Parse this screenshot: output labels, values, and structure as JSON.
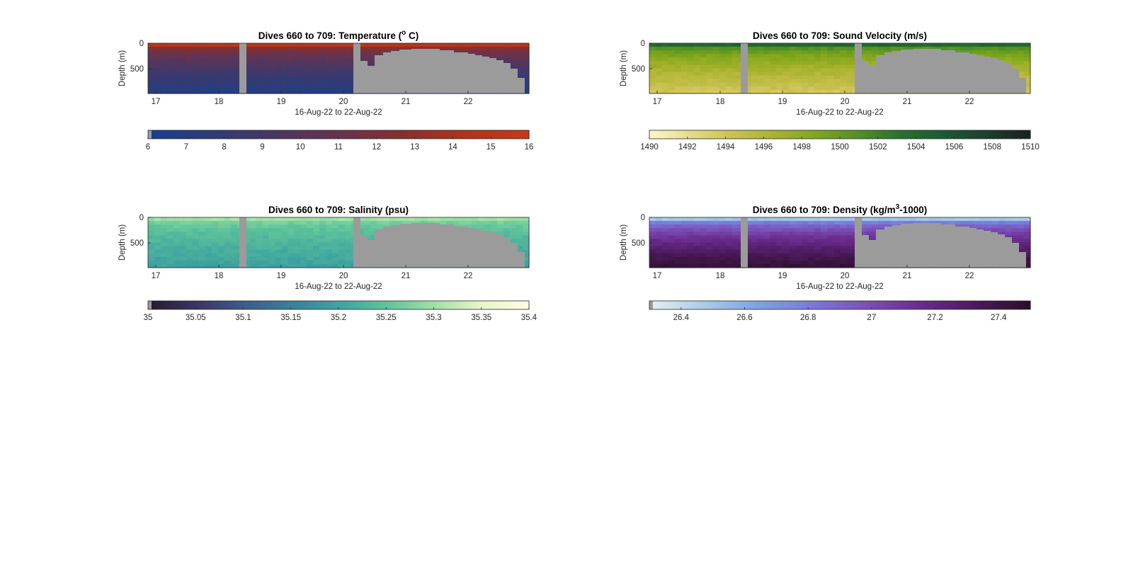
{
  "chart_data": [
    {
      "type": "heatmap",
      "title_main": "Dives 660 to 709: Temperature (",
      "title_sup": "o",
      "title_tail": " C)",
      "xlabel": "16-Aug-22 to 22-Aug-22",
      "ylabel": "Depth (m)",
      "xlim": [
        16.9,
        23.0
      ],
      "ylim": [
        0,
        990
      ],
      "x_ticks": [
        "17",
        "18",
        "19",
        "20",
        "21",
        "22"
      ],
      "y_ticks": [
        "0",
        "500"
      ],
      "colorbar": {
        "ticks": [
          "6",
          "7",
          "8",
          "9",
          "10",
          "11",
          "12",
          "13",
          "14",
          "15",
          "16"
        ],
        "range": [
          6,
          16
        ],
        "colors": [
          "#1a3f8f",
          "#2e3c78",
          "#4a3663",
          "#67334e",
          "#85302f",
          "#b0341c",
          "#c8361a"
        ]
      },
      "surface_value": 15,
      "deep_value": 7,
      "missing_color": "#9b9b9b"
    },
    {
      "type": "heatmap",
      "title_main": "Dives 660 to 709: Sound Velocity (m/s)",
      "title_sup": "",
      "title_tail": "",
      "xlabel": "16-Aug-22 to 22-Aug-22",
      "ylabel": "Depth (m)",
      "xlim": [
        16.9,
        23.0
      ],
      "ylim": [
        0,
        990
      ],
      "x_ticks": [
        "17",
        "18",
        "19",
        "20",
        "21",
        "22"
      ],
      "y_ticks": [
        "0",
        "500"
      ],
      "colorbar": {
        "ticks": [
          "1490",
          "1492",
          "1494",
          "1496",
          "1498",
          "1500",
          "1502",
          "1504",
          "1506",
          "1508",
          "1510"
        ],
        "range": [
          1490,
          1510
        ],
        "colors": [
          "#fbf6c9",
          "#e6d987",
          "#c9c04f",
          "#a7b22c",
          "#7ea51c",
          "#4f8f25",
          "#266f2c",
          "#1b5a34",
          "#1c3f2e",
          "#1b2320"
        ]
      },
      "surface_value": 1504,
      "deep_value": 1494,
      "missing_color": "#9b9b9b"
    },
    {
      "type": "heatmap",
      "title_main": "Dives 660 to 709: Salinity (psu)",
      "title_sup": "",
      "title_tail": "",
      "xlabel": "16-Aug-22 to 22-Aug-22",
      "ylabel": "Depth (m)",
      "xlim": [
        16.9,
        23.0
      ],
      "ylim": [
        0,
        990
      ],
      "x_ticks": [
        "17",
        "18",
        "19",
        "20",
        "21",
        "22"
      ],
      "y_ticks": [
        "0",
        "500"
      ],
      "colorbar": {
        "ticks": [
          "35",
          "35.05",
          "35.1",
          "35.15",
          "35.2",
          "35.25",
          "35.3",
          "35.35",
          "35.4"
        ],
        "range": [
          35,
          35.4
        ],
        "colors": [
          "#261c2c",
          "#3b3566",
          "#3f5b8c",
          "#3c7e9a",
          "#3ea3a0",
          "#5ec399",
          "#9edfa5",
          "#e7f5c8",
          "#fdfce3"
        ]
      },
      "surface_value": 35.3,
      "deep_value": 35.2,
      "missing_color": "#9b9b9b"
    },
    {
      "type": "heatmap",
      "title_main": "Dives 660 to 709: Density (kg/m",
      "title_sup": "3",
      "title_tail": "-1000)",
      "xlabel": "16-Aug-22 to 22-Aug-22",
      "ylabel": "Depth (m)",
      "xlim": [
        16.9,
        23.0
      ],
      "ylim": [
        0,
        990
      ],
      "x_ticks": [
        "17",
        "18",
        "19",
        "20",
        "21",
        "22"
      ],
      "y_ticks": [
        "0",
        "500"
      ],
      "colorbar": {
        "ticks": [
          "26.4",
          "26.6",
          "26.8",
          "27",
          "27.2",
          "27.4"
        ],
        "range": [
          26.3,
          27.5
        ],
        "colors": [
          "#e4eef0",
          "#a8cbe6",
          "#7ea2e0",
          "#7a79d8",
          "#7a50b8",
          "#6b2b8e",
          "#4c1a5c",
          "#2b0f2a"
        ]
      },
      "surface_value": 26.5,
      "deep_value": 27.45,
      "missing_color": "#9b9b9b"
    }
  ]
}
